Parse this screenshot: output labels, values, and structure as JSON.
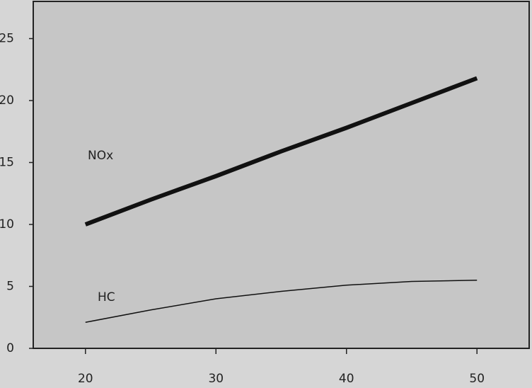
{
  "chart_data": {
    "type": "line",
    "x": [
      20,
      25,
      30,
      35,
      40,
      45,
      50
    ],
    "series": [
      {
        "name": "NOx",
        "color": "#111111",
        "values": [
          10,
          12,
          13.9,
          15.9,
          17.8,
          19.8,
          21.8
        ]
      },
      {
        "name": "HC",
        "color": "#111111",
        "values": [
          2.1,
          3.1,
          4.0,
          4.6,
          5.1,
          5.4,
          5.5
        ]
      }
    ],
    "xlim": [
      16,
      54
    ],
    "ylim": [
      0,
      28
    ],
    "xticks": [
      20,
      30,
      40,
      50
    ],
    "yticks": [
      0,
      5,
      10,
      15,
      20,
      25
    ]
  }
}
